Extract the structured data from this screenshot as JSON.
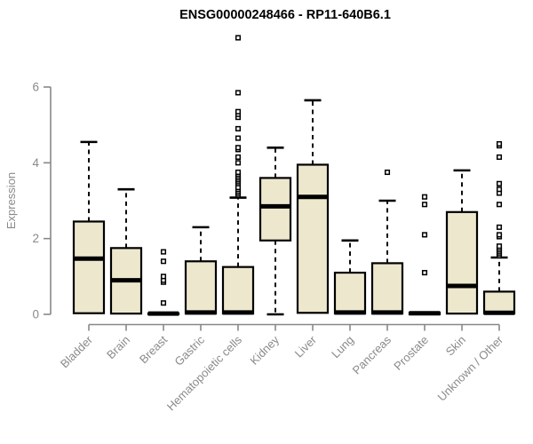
{
  "figure": {
    "background": "#ffffff"
  },
  "chart_data": {
    "type": "boxplot",
    "title": "ENSG00000248466 - RP11-640B6.1",
    "ylabel": "Expression",
    "xlabel": "",
    "yticks": [
      0,
      2,
      4,
      6
    ],
    "ylim": [
      0,
      7.5
    ],
    "grid": false,
    "legend": null,
    "colors": {
      "box_fill": "#EDE8CD",
      "box_stroke": "#000000",
      "median": "#000000",
      "axis": "#888888",
      "title": "#000000"
    },
    "categories": [
      "Bladder",
      "Brain",
      "Breast",
      "Gastric",
      "Hematopoietic cells",
      "Kidney",
      "Liver",
      "Lung",
      "Pancreas",
      "Prostate",
      "Skin",
      "Unknown / Other"
    ],
    "series": [
      {
        "category": "Bladder",
        "low": 0,
        "q1": 0.03,
        "median": 1.47,
        "q3": 2.45,
        "high": 4.55,
        "outliers": []
      },
      {
        "category": "Brain",
        "low": 0,
        "q1": 0.02,
        "median": 0.9,
        "q3": 1.75,
        "high": 3.3,
        "outliers": []
      },
      {
        "category": "Breast",
        "low": 0,
        "q1": 0,
        "median": 0.02,
        "q3": 0.03,
        "high": 0.03,
        "outliers": [
          0.3,
          0.85,
          0.9,
          1.0,
          1.4,
          1.65
        ]
      },
      {
        "category": "Gastric",
        "low": 0,
        "q1": 0.02,
        "median": 0.05,
        "q3": 1.4,
        "high": 2.3,
        "outliers": []
      },
      {
        "category": "Hematopoietic cells",
        "low": 0,
        "q1": 0.02,
        "median": 0.05,
        "q3": 1.25,
        "high": 3.08,
        "outliers": [
          3.15,
          3.2,
          3.25,
          3.3,
          3.35,
          3.45,
          3.5,
          3.55,
          3.6,
          3.65,
          3.7,
          3.75,
          4.0,
          4.15,
          4.35,
          4.4,
          4.65,
          4.9,
          5.2,
          5.28,
          5.35,
          5.85,
          7.3
        ]
      },
      {
        "category": "Kidney",
        "low": 0,
        "q1": 1.95,
        "median": 2.85,
        "q3": 3.6,
        "high": 4.4,
        "outliers": []
      },
      {
        "category": "Liver",
        "low": 0,
        "q1": 0.04,
        "median": 3.1,
        "q3": 3.95,
        "high": 5.65,
        "outliers": []
      },
      {
        "category": "Lung",
        "low": 0,
        "q1": 0.02,
        "median": 0.05,
        "q3": 1.1,
        "high": 1.95,
        "outliers": []
      },
      {
        "category": "Pancreas",
        "low": 0,
        "q1": 0.02,
        "median": 0.05,
        "q3": 1.35,
        "high": 3.0,
        "outliers": [
          3.75
        ]
      },
      {
        "category": "Prostate",
        "low": 0,
        "q1": 0,
        "median": 0.03,
        "q3": 0.05,
        "high": 0.05,
        "outliers": [
          1.1,
          2.1,
          2.9,
          3.1
        ]
      },
      {
        "category": "Skin",
        "low": 0,
        "q1": 0.02,
        "median": 0.75,
        "q3": 2.7,
        "high": 3.8,
        "outliers": []
      },
      {
        "category": "Unknown / Other",
        "low": 0,
        "q1": 0.02,
        "median": 0.04,
        "q3": 0.6,
        "high": 1.5,
        "outliers": [
          1.55,
          1.6,
          1.65,
          1.7,
          1.75,
          1.8,
          2.05,
          2.1,
          2.3,
          2.9,
          3.2,
          3.3,
          3.45,
          4.15,
          4.45,
          4.5
        ]
      }
    ]
  }
}
